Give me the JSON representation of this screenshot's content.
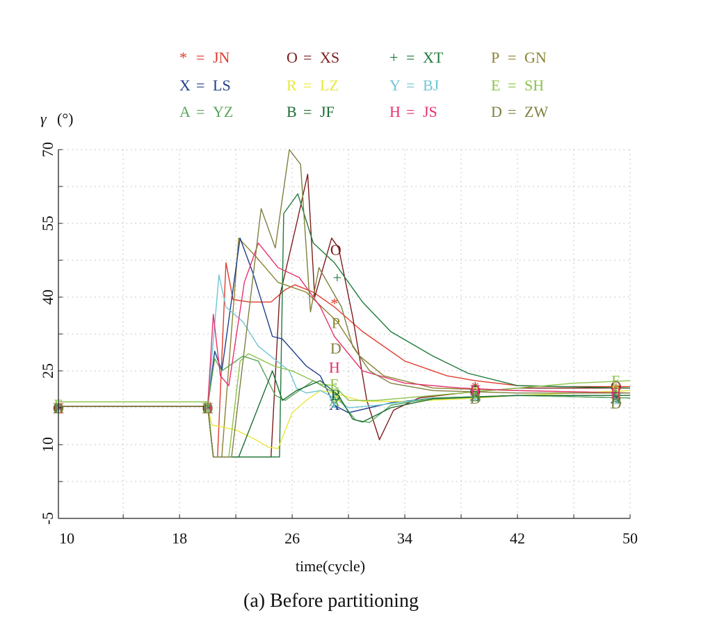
{
  "chart_data": {
    "type": "line",
    "caption": "(a) Before partitioning",
    "xlabel": "time(cycle)",
    "ylabel_symbol": "γ",
    "ylabel_unit": "(°)",
    "xlim": [
      9.4,
      50
    ],
    "ylim": [
      -5,
      70
    ],
    "xticks": [
      10,
      18,
      26,
      34,
      42,
      50
    ],
    "xtick_labels": [
      "10",
      "18",
      "26",
      "34",
      "42",
      "50"
    ],
    "yticks": [
      -5,
      10,
      25,
      40,
      55,
      70
    ],
    "ytick_labels": [
      "-5",
      "10",
      "25",
      "40",
      "55",
      "70"
    ],
    "grid": true,
    "legend_position": "top",
    "series": [
      {
        "marker": "*",
        "name": "JN",
        "color": "#e03a2c",
        "points": [
          [
            9.4,
            17.8
          ],
          [
            20,
            17.8
          ],
          [
            20.4,
            7.5
          ],
          [
            20.7,
            7.5
          ],
          [
            21.3,
            47
          ],
          [
            21.8,
            39.5
          ],
          [
            23,
            39
          ],
          [
            24.5,
            39
          ],
          [
            25.5,
            41.5
          ],
          [
            26.2,
            42.5
          ],
          [
            27.5,
            41
          ],
          [
            29,
            38
          ],
          [
            31,
            33
          ],
          [
            34,
            27
          ],
          [
            37,
            24
          ],
          [
            39,
            23
          ],
          [
            42,
            22
          ],
          [
            45,
            21.8
          ],
          [
            50,
            21.8
          ]
        ],
        "markers": [
          [
            9.4,
            17.5
          ],
          [
            20,
            17.5
          ],
          [
            29,
            38.8
          ],
          [
            39,
            21.8
          ],
          [
            49,
            21.5
          ]
        ]
      },
      {
        "marker": "O",
        "name": "XS",
        "color": "#7b1c1c",
        "points": [
          [
            9.4,
            17.8
          ],
          [
            20,
            17.8
          ],
          [
            20.4,
            7.5
          ],
          [
            23,
            7.5
          ],
          [
            24.5,
            7.5
          ],
          [
            25.1,
            40
          ],
          [
            26.4,
            56
          ],
          [
            27.1,
            65
          ],
          [
            27.6,
            40
          ],
          [
            28.8,
            52
          ],
          [
            29.3,
            50
          ],
          [
            30.3,
            36
          ],
          [
            31.3,
            19
          ],
          [
            32.2,
            11
          ],
          [
            33.2,
            17
          ],
          [
            35,
            19.5
          ],
          [
            38,
            20.5
          ],
          [
            42,
            21.5
          ],
          [
            46,
            21.5
          ],
          [
            50,
            21.5
          ]
        ],
        "markers": [
          [
            9.4,
            17.5
          ],
          [
            20,
            17.5
          ],
          [
            29.1,
            49.7
          ],
          [
            39,
            21
          ],
          [
            49,
            21.9
          ]
        ]
      },
      {
        "marker": "+",
        "name": "XT",
        "color": "#1e7a3a",
        "points": [
          [
            9.4,
            17.8
          ],
          [
            20,
            17.8
          ],
          [
            20.4,
            7.5
          ],
          [
            24.5,
            7.5
          ],
          [
            25.1,
            7.5
          ],
          [
            25.4,
            57
          ],
          [
            26.4,
            61
          ],
          [
            27.5,
            51
          ],
          [
            29,
            47
          ],
          [
            31,
            39
          ],
          [
            33,
            33
          ],
          [
            36,
            28
          ],
          [
            38.5,
            24.5
          ],
          [
            42,
            22
          ],
          [
            50,
            21.5
          ]
        ],
        "markers": [
          [
            9.4,
            17.5
          ],
          [
            20,
            17.5
          ],
          [
            29.2,
            44
          ],
          [
            39,
            22
          ],
          [
            49,
            21
          ]
        ]
      },
      {
        "marker": "P",
        "name": "GN",
        "color": "#8b8232",
        "points": [
          [
            9.4,
            17.8
          ],
          [
            20,
            17.8
          ],
          [
            20.4,
            7.5
          ],
          [
            21,
            7.5
          ],
          [
            22.2,
            52
          ],
          [
            23.5,
            48
          ],
          [
            25,
            43
          ],
          [
            27,
            41
          ],
          [
            29.2,
            35
          ],
          [
            30.8,
            28
          ],
          [
            32.5,
            24
          ],
          [
            36,
            21.5
          ],
          [
            42,
            21
          ],
          [
            50,
            20.5
          ]
        ],
        "markers": [
          [
            9.4,
            17.5
          ],
          [
            20,
            17.5
          ],
          [
            29.1,
            34.8
          ],
          [
            39,
            20.5
          ],
          [
            49,
            20.6
          ]
        ]
      },
      {
        "marker": "X",
        "name": "LS",
        "color": "#1f3f8a",
        "points": [
          [
            9.4,
            17.8
          ],
          [
            20,
            17.8
          ],
          [
            20.5,
            29
          ],
          [
            21,
            25
          ],
          [
            22.3,
            52
          ],
          [
            23.2,
            45
          ],
          [
            24.6,
            32
          ],
          [
            25.3,
            31.5
          ],
          [
            27,
            26
          ],
          [
            28,
            24
          ],
          [
            29,
            18
          ],
          [
            30,
            16.5
          ],
          [
            33,
            18.5
          ],
          [
            36,
            19.5
          ],
          [
            42,
            20
          ],
          [
            50,
            19.5
          ]
        ],
        "markers": [
          [
            9.4,
            17.5
          ],
          [
            20,
            17.5
          ],
          [
            29,
            18.2
          ],
          [
            39,
            20.2
          ],
          [
            49,
            19.6
          ]
        ]
      },
      {
        "marker": "R",
        "name": "LZ",
        "color": "#e8e83a",
        "points": [
          [
            9.4,
            17.8
          ],
          [
            20,
            17.8
          ],
          [
            20.3,
            14
          ],
          [
            22,
            13
          ],
          [
            23.4,
            11
          ],
          [
            24.3,
            9.5
          ],
          [
            25,
            9.2
          ],
          [
            26,
            16.5
          ],
          [
            27,
            19
          ],
          [
            28,
            21
          ],
          [
            29,
            20.5
          ],
          [
            31,
            18.8
          ],
          [
            34,
            18.8
          ],
          [
            38,
            19.3
          ],
          [
            42,
            20
          ],
          [
            50,
            21
          ]
        ],
        "markers": [
          [
            9.4,
            17.5
          ],
          [
            20,
            17.5
          ],
          [
            29.1,
            19.9
          ],
          [
            39,
            20.6
          ],
          [
            49,
            20.9
          ]
        ]
      },
      {
        "marker": "Y",
        "name": "BJ",
        "color": "#6ec6d4",
        "points": [
          [
            9.4,
            17.8
          ],
          [
            20,
            17.8
          ],
          [
            20.8,
            44.5
          ],
          [
            21.3,
            38
          ],
          [
            22.5,
            35
          ],
          [
            23.6,
            30
          ],
          [
            25.8,
            25
          ],
          [
            26.3,
            21.5
          ],
          [
            27,
            20.5
          ],
          [
            28,
            21
          ],
          [
            29,
            19.5
          ],
          [
            30,
            17.5
          ],
          [
            32,
            18
          ],
          [
            36,
            19.5
          ],
          [
            42,
            20
          ],
          [
            50,
            19.5
          ]
        ],
        "markers": [
          [
            9.4,
            17.5
          ],
          [
            20,
            17.5
          ],
          [
            29,
            18.6
          ],
          [
            39,
            20.2
          ],
          [
            49,
            19.4
          ]
        ]
      },
      {
        "marker": "E",
        "name": "SH",
        "color": "#8bc34a",
        "points": [
          [
            9.4,
            18.7
          ],
          [
            20,
            18.7
          ],
          [
            20.4,
            7.5
          ],
          [
            21.5,
            7.5
          ],
          [
            22.3,
            27
          ],
          [
            22.9,
            28.5
          ],
          [
            24.7,
            26
          ],
          [
            26,
            25
          ],
          [
            28,
            22.3
          ],
          [
            29,
            22
          ],
          [
            30,
            19
          ],
          [
            32,
            19
          ],
          [
            36,
            20
          ],
          [
            42,
            21.5
          ],
          [
            46,
            22.5
          ],
          [
            50,
            23
          ]
        ],
        "markers": [
          [
            9.4,
            18.2
          ],
          [
            20,
            17.8
          ],
          [
            29,
            22.4
          ],
          [
            39,
            20.8
          ],
          [
            49,
            23.1
          ]
        ]
      },
      {
        "marker": "A",
        "name": "YZ",
        "color": "#5aa65a",
        "points": [
          [
            9.4,
            17.8
          ],
          [
            20,
            17.8
          ],
          [
            20.5,
            27.5
          ],
          [
            21,
            25
          ],
          [
            22.5,
            28
          ],
          [
            23.6,
            27
          ],
          [
            24.8,
            20
          ],
          [
            25.5,
            19
          ],
          [
            27.5,
            23
          ],
          [
            29,
            20.5
          ],
          [
            30.5,
            15
          ],
          [
            31.5,
            14.5
          ],
          [
            33,
            18
          ],
          [
            36,
            19.5
          ],
          [
            42,
            20
          ],
          [
            50,
            19.5
          ]
        ],
        "markers": [
          [
            9.4,
            17.5
          ],
          [
            20,
            17.5
          ],
          [
            29,
            19
          ],
          [
            39,
            20
          ],
          [
            49,
            19.5
          ]
        ]
      },
      {
        "marker": "B",
        "name": "JF",
        "color": "#1c6b35",
        "points": [
          [
            9.4,
            17.8
          ],
          [
            20,
            17.8
          ],
          [
            20.4,
            7.5
          ],
          [
            22.2,
            7.5
          ],
          [
            24.6,
            25
          ],
          [
            25.3,
            19
          ],
          [
            26.3,
            21
          ],
          [
            28,
            23
          ],
          [
            28.8,
            21.2
          ],
          [
            29.3,
            20
          ],
          [
            30.3,
            15.2
          ],
          [
            31,
            14.6
          ],
          [
            33,
            17.5
          ],
          [
            36,
            19.3
          ],
          [
            42,
            20
          ],
          [
            50,
            20
          ]
        ],
        "markers": [
          [
            9.4,
            17.5
          ],
          [
            20,
            17.5
          ],
          [
            29.1,
            20.2
          ],
          [
            39,
            20
          ],
          [
            49,
            19.8
          ]
        ]
      },
      {
        "marker": "H",
        "name": "JS",
        "color": "#e6306e",
        "points": [
          [
            9.4,
            17.8
          ],
          [
            20,
            17.8
          ],
          [
            20.4,
            36.5
          ],
          [
            20.9,
            24
          ],
          [
            21.5,
            22
          ],
          [
            22.6,
            43
          ],
          [
            23.6,
            51
          ],
          [
            25,
            46
          ],
          [
            26.5,
            44
          ],
          [
            28,
            38
          ],
          [
            29,
            32
          ],
          [
            31,
            25
          ],
          [
            34,
            22.5
          ],
          [
            38,
            21.5
          ],
          [
            42,
            21
          ],
          [
            50,
            20.5
          ]
        ],
        "markers": [
          [
            9.4,
            17.5
          ],
          [
            20,
            17.5
          ],
          [
            29,
            25.8
          ],
          [
            39,
            21.2
          ],
          [
            49,
            20.6
          ]
        ]
      },
      {
        "marker": "D",
        "name": "ZW",
        "color": "#7f7f3f",
        "points": [
          [
            9.4,
            17.8
          ],
          [
            20,
            17.8
          ],
          [
            20.4,
            7.5
          ],
          [
            21.7,
            7.5
          ],
          [
            23.8,
            58
          ],
          [
            24.8,
            50
          ],
          [
            25.8,
            70
          ],
          [
            26.6,
            67
          ],
          [
            27.3,
            37
          ],
          [
            27.9,
            46
          ],
          [
            29.5,
            38
          ],
          [
            30.3,
            30
          ],
          [
            31.5,
            25
          ],
          [
            33,
            22.5
          ],
          [
            36,
            21
          ],
          [
            42,
            20.5
          ],
          [
            50,
            20.5
          ]
        ],
        "markers": [
          [
            9.4,
            17.5
          ],
          [
            20,
            17.5
          ],
          [
            29.1,
            29.7
          ],
          [
            39,
            19.5
          ],
          [
            49,
            18.5
          ]
        ]
      }
    ],
    "legend_text": [
      {
        "symbol": "*",
        "eq": "=",
        "name": "JN",
        "color": "#e03a2c"
      },
      {
        "symbol": "O",
        "eq": "=",
        "name": "XS",
        "color": "#7b1c1c"
      },
      {
        "symbol": "+",
        "eq": "=",
        "name": "XT",
        "color": "#1e7a3a"
      },
      {
        "symbol": "P",
        "eq": "=",
        "name": "GN",
        "color": "#8b8232"
      },
      {
        "symbol": "X",
        "eq": "=",
        "name": "LS",
        "color": "#1f3f8a"
      },
      {
        "symbol": "R",
        "eq": "=",
        "name": "LZ",
        "color": "#e8e83a"
      },
      {
        "symbol": "Y",
        "eq": "=",
        "name": "BJ",
        "color": "#6ec6d4"
      },
      {
        "symbol": "E",
        "eq": "=",
        "name": "SH",
        "color": "#8bc34a"
      },
      {
        "symbol": "A",
        "eq": "=",
        "name": "YZ",
        "color": "#5aa65a"
      },
      {
        "symbol": "B",
        "eq": "=",
        "name": "JF",
        "color": "#1c6b35"
      },
      {
        "symbol": "H",
        "eq": "=",
        "name": "JS",
        "color": "#e6306e"
      },
      {
        "symbol": "D",
        "eq": "=",
        "name": "ZW",
        "color": "#7f7f3f"
      }
    ]
  }
}
